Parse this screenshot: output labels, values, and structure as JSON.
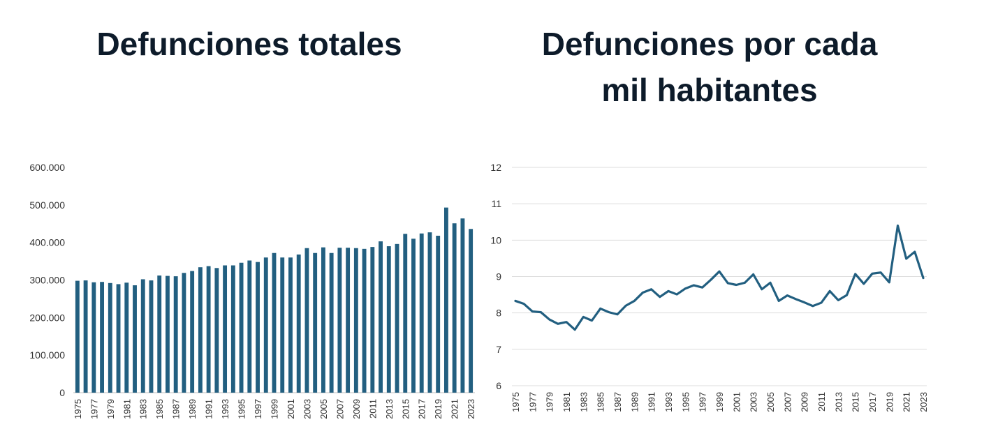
{
  "titles": {
    "left": "Defunciones totales",
    "right_line1": "Defunciones por cada",
    "right_line2": "mil habitantes"
  },
  "colors": {
    "series": "#225f80",
    "grid": "#dddddd",
    "axis": "#bfbfbf"
  },
  "chart_data": [
    {
      "type": "bar",
      "title": "Defunciones totales",
      "xlabel": "",
      "ylabel": "",
      "ylim": [
        0,
        600000
      ],
      "yticks": [
        0,
        100000,
        200000,
        300000,
        400000,
        500000,
        600000
      ],
      "ytick_labels": [
        "0",
        "100.000",
        "200.000",
        "300.000",
        "400.000",
        "500.000",
        "600.000"
      ],
      "grid": false,
      "categories": [
        1975,
        1976,
        1977,
        1978,
        1979,
        1980,
        1981,
        1982,
        1983,
        1984,
        1985,
        1986,
        1987,
        1988,
        1989,
        1990,
        1991,
        1992,
        1993,
        1994,
        1995,
        1996,
        1997,
        1998,
        1999,
        2000,
        2001,
        2002,
        2003,
        2004,
        2005,
        2006,
        2007,
        2008,
        2009,
        2010,
        2011,
        2012,
        2013,
        2014,
        2015,
        2016,
        2017,
        2018,
        2019,
        2020,
        2021,
        2022,
        2023
      ],
      "xtick_labels": [
        1975,
        1977,
        1979,
        1981,
        1983,
        1985,
        1987,
        1989,
        1991,
        1993,
        1995,
        1997,
        1999,
        2001,
        2003,
        2005,
        2007,
        2009,
        2011,
        2013,
        2015,
        2017,
        2019,
        2021,
        2023
      ],
      "values": [
        298000,
        299000,
        294000,
        295000,
        292000,
        289000,
        293000,
        286000,
        302000,
        299000,
        312000,
        311000,
        310000,
        319000,
        324000,
        334000,
        337000,
        332000,
        339000,
        339000,
        346000,
        352000,
        348000,
        360000,
        372000,
        360000,
        360000,
        368000,
        385000,
        372000,
        387000,
        372000,
        386000,
        386000,
        385000,
        383000,
        388000,
        403000,
        390000,
        396000,
        423000,
        410000,
        424000,
        427000,
        418000,
        493000,
        451000,
        464000,
        436000
      ]
    },
    {
      "type": "line",
      "title": "Defunciones por cada mil habitantes",
      "xlabel": "",
      "ylabel": "",
      "ylim": [
        6,
        12
      ],
      "yticks": [
        6,
        7,
        8,
        9,
        10,
        11,
        12
      ],
      "grid": true,
      "x": [
        1975,
        1976,
        1977,
        1978,
        1979,
        1980,
        1981,
        1982,
        1983,
        1984,
        1985,
        1986,
        1987,
        1988,
        1989,
        1990,
        1991,
        1992,
        1993,
        1994,
        1995,
        1996,
        1997,
        1998,
        1999,
        2000,
        2001,
        2002,
        2003,
        2004,
        2005,
        2006,
        2007,
        2008,
        2009,
        2010,
        2011,
        2012,
        2013,
        2014,
        2015,
        2016,
        2017,
        2018,
        2019,
        2020,
        2021,
        2022,
        2023
      ],
      "xtick_labels": [
        1975,
        1977,
        1979,
        1981,
        1983,
        1985,
        1987,
        1989,
        1991,
        1993,
        1995,
        1997,
        1999,
        2001,
        2003,
        2005,
        2007,
        2009,
        2011,
        2013,
        2015,
        2017,
        2019,
        2021,
        2023
      ],
      "values": [
        8.33,
        8.25,
        8.04,
        8.02,
        7.82,
        7.7,
        7.75,
        7.54,
        7.89,
        7.79,
        8.12,
        8.02,
        7.96,
        8.2,
        8.33,
        8.56,
        8.65,
        8.44,
        8.6,
        8.51,
        8.67,
        8.76,
        8.7,
        8.91,
        9.14,
        8.82,
        8.77,
        8.83,
        9.06,
        8.65,
        8.83,
        8.33,
        8.48,
        8.38,
        8.29,
        8.19,
        8.28,
        8.6,
        8.35,
        8.49,
        9.07,
        8.8,
        9.08,
        9.11,
        8.84,
        10.4,
        9.49,
        9.68,
        8.96
      ]
    }
  ]
}
